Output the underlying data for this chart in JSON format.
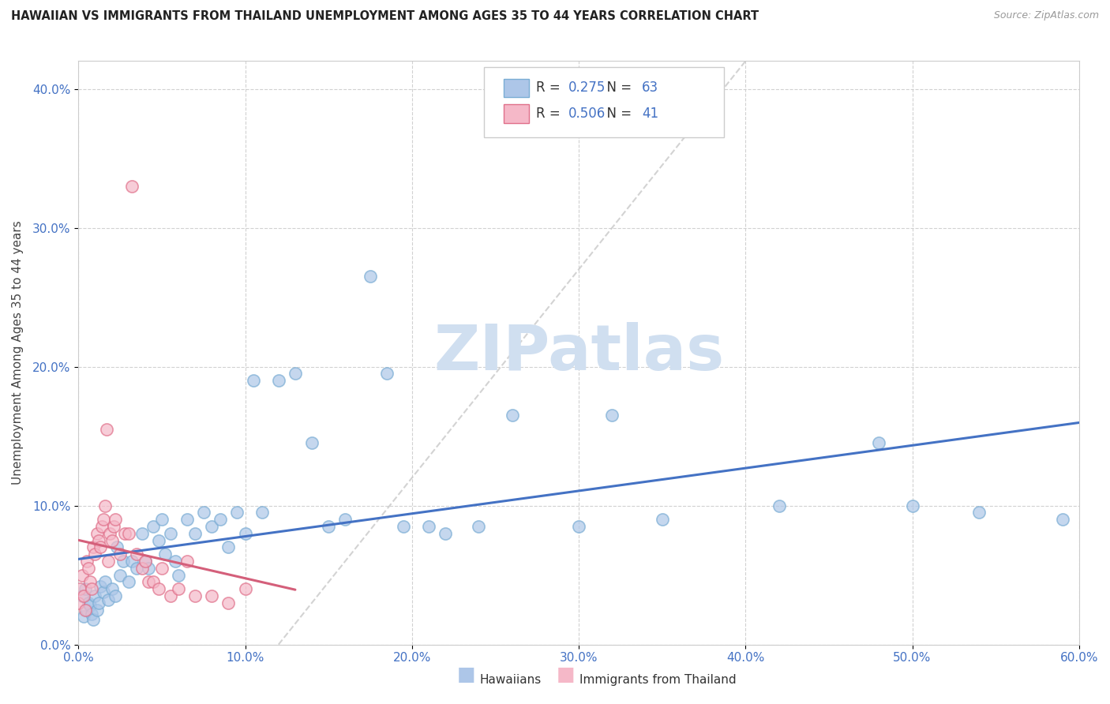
{
  "title": "HAWAIIAN VS IMMIGRANTS FROM THAILAND UNEMPLOYMENT AMONG AGES 35 TO 44 YEARS CORRELATION CHART",
  "source": "Source: ZipAtlas.com",
  "ylabel": "Unemployment Among Ages 35 to 44 years",
  "xlim": [
    0,
    0.6
  ],
  "ylim": [
    0,
    0.42
  ],
  "xticks": [
    0.0,
    0.1,
    0.2,
    0.3,
    0.4,
    0.5,
    0.6
  ],
  "yticks": [
    0.0,
    0.1,
    0.2,
    0.3,
    0.4
  ],
  "R_hawaiian": 0.275,
  "N_hawaiian": 63,
  "R_thailand": 0.506,
  "N_thailand": 41,
  "color_hawaiian_fill": "#adc6e8",
  "color_hawaiian_edge": "#7aadd4",
  "color_thailand_fill": "#f5b8c8",
  "color_thailand_edge": "#e0708a",
  "color_trendline_hawaiian": "#4472c4",
  "color_trendline_thailand": "#d45f7a",
  "color_refline": "#c8c8c8",
  "watermark_text": "ZIPatlas",
  "watermark_color": "#d0dff0",
  "legend_label_color": "#4472c4",
  "hawaiian_x": [
    0.002,
    0.003,
    0.004,
    0.005,
    0.006,
    0.007,
    0.008,
    0.009,
    0.01,
    0.011,
    0.012,
    0.013,
    0.015,
    0.016,
    0.018,
    0.02,
    0.022,
    0.023,
    0.025,
    0.027,
    0.03,
    0.032,
    0.035,
    0.038,
    0.04,
    0.042,
    0.045,
    0.048,
    0.05,
    0.052,
    0.055,
    0.058,
    0.06,
    0.065,
    0.07,
    0.075,
    0.08,
    0.085,
    0.09,
    0.095,
    0.1,
    0.105,
    0.11,
    0.12,
    0.13,
    0.14,
    0.15,
    0.16,
    0.175,
    0.185,
    0.195,
    0.21,
    0.22,
    0.24,
    0.26,
    0.3,
    0.32,
    0.35,
    0.42,
    0.48,
    0.5,
    0.54,
    0.59
  ],
  "hawaiian_y": [
    0.035,
    0.02,
    0.04,
    0.025,
    0.03,
    0.028,
    0.022,
    0.018,
    0.035,
    0.025,
    0.03,
    0.042,
    0.038,
    0.045,
    0.032,
    0.04,
    0.035,
    0.07,
    0.05,
    0.06,
    0.045,
    0.06,
    0.055,
    0.08,
    0.06,
    0.055,
    0.085,
    0.075,
    0.09,
    0.065,
    0.08,
    0.06,
    0.05,
    0.09,
    0.08,
    0.095,
    0.085,
    0.09,
    0.07,
    0.095,
    0.08,
    0.19,
    0.095,
    0.19,
    0.195,
    0.145,
    0.085,
    0.09,
    0.265,
    0.195,
    0.085,
    0.085,
    0.08,
    0.085,
    0.165,
    0.085,
    0.165,
    0.09,
    0.1,
    0.145,
    0.1,
    0.095,
    0.09
  ],
  "thailand_x": [
    0.0,
    0.001,
    0.002,
    0.003,
    0.004,
    0.005,
    0.006,
    0.007,
    0.008,
    0.009,
    0.01,
    0.011,
    0.012,
    0.013,
    0.014,
    0.015,
    0.016,
    0.017,
    0.018,
    0.019,
    0.02,
    0.021,
    0.022,
    0.025,
    0.028,
    0.03,
    0.032,
    0.035,
    0.038,
    0.04,
    0.042,
    0.045,
    0.048,
    0.05,
    0.055,
    0.06,
    0.065,
    0.07,
    0.08,
    0.09,
    0.1
  ],
  "thailand_y": [
    0.03,
    0.04,
    0.05,
    0.035,
    0.025,
    0.06,
    0.055,
    0.045,
    0.04,
    0.07,
    0.065,
    0.08,
    0.075,
    0.07,
    0.085,
    0.09,
    0.1,
    0.155,
    0.06,
    0.08,
    0.075,
    0.085,
    0.09,
    0.065,
    0.08,
    0.08,
    0.33,
    0.065,
    0.055,
    0.06,
    0.045,
    0.045,
    0.04,
    0.055,
    0.035,
    0.04,
    0.06,
    0.035,
    0.035,
    0.03,
    0.04
  ]
}
